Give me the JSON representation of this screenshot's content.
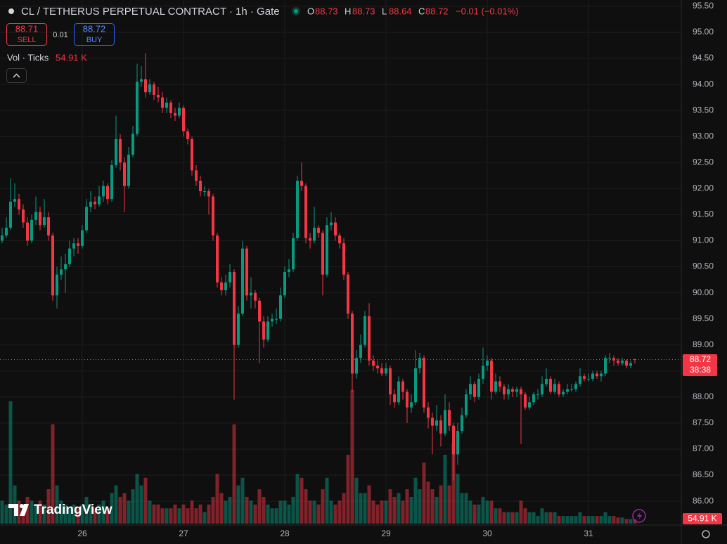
{
  "header": {
    "title": "CL / TETHERUS PERPETUAL CONTRACT · 1h · Gate",
    "o_label": "O",
    "o": "88.73",
    "h_label": "H",
    "h": "88.73",
    "l_label": "L",
    "l": "88.64",
    "c_label": "C",
    "c": "88.72",
    "change": "−0.01 (−0.01%)",
    "sell_price": "88.71",
    "sell": "SELL",
    "spread": "0.01",
    "buy_price": "88.72",
    "buy": "BUY",
    "vol_title": "Vol · Ticks",
    "vol_value": "54.91 K",
    "logo": "TradingView",
    "price_tag": "88.72",
    "countdown": "38:38",
    "vol_tag": "54.91 K"
  },
  "chart_data": {
    "type": "candlestick",
    "up_color": "#089981",
    "down_color": "#f23645",
    "grid": true,
    "categories": [
      null,
      null,
      null,
      null,
      null,
      null,
      null,
      null,
      null,
      null,
      null,
      null,
      null,
      null,
      null,
      null,
      null,
      null,
      null,
      "26",
      null,
      null,
      null,
      null,
      null,
      null,
      null,
      null,
      null,
      null,
      null,
      null,
      null,
      null,
      null,
      null,
      null,
      null,
      null,
      null,
      null,
      null,
      null,
      "27",
      null,
      null,
      null,
      null,
      null,
      null,
      null,
      null,
      null,
      null,
      null,
      null,
      null,
      null,
      null,
      null,
      null,
      null,
      null,
      null,
      null,
      null,
      null,
      "28",
      null,
      null,
      null,
      null,
      null,
      null,
      null,
      null,
      null,
      null,
      null,
      null,
      null,
      null,
      null,
      null,
      null,
      null,
      null,
      null,
      null,
      null,
      null,
      "29",
      null,
      null,
      null,
      null,
      null,
      null,
      null,
      null,
      null,
      null,
      null,
      null,
      null,
      null,
      null,
      null,
      null,
      null,
      null,
      null,
      null,
      null,
      null,
      "30",
      null,
      null,
      null,
      null,
      null,
      null,
      null,
      null,
      null,
      null,
      null,
      null,
      null,
      null,
      null,
      null,
      null,
      null,
      null,
      null,
      null,
      null,
      null,
      "31",
      null,
      null,
      null,
      null,
      null,
      null,
      null,
      null,
      null,
      null,
      null
    ],
    "open": [
      91.0,
      91.1,
      91.25,
      91.75,
      91.8,
      91.6,
      91.35,
      91.0,
      91.4,
      91.55,
      91.3,
      91.45,
      91.1,
      89.95,
      90.35,
      90.45,
      90.55,
      90.85,
      90.95,
      90.9,
      91.2,
      91.65,
      91.75,
      91.7,
      91.85,
      92.05,
      91.8,
      92.45,
      92.95,
      92.5,
      92.05,
      92.65,
      93.05,
      94.05,
      94.1,
      93.85,
      94.0,
      93.8,
      93.75,
      93.55,
      93.65,
      93.45,
      93.4,
      93.55,
      93.1,
      92.95,
      92.35,
      92.15,
      91.95,
      91.95,
      91.85,
      91.1,
      90.2,
      90.05,
      90.2,
      90.4,
      89.0,
      89.6,
      90.85,
      89.95,
      90.0,
      89.85,
      89.45,
      89.1,
      89.45,
      89.5,
      89.5,
      89.95,
      90.4,
      90.45,
      91.05,
      92.15,
      92.05,
      91.05,
      91.0,
      91.25,
      91.15,
      90.35,
      91.3,
      91.35,
      91.1,
      90.95,
      90.35,
      89.6,
      88.45,
      88.75,
      89.0,
      89.55,
      88.7,
      88.6,
      88.55,
      88.45,
      88.55,
      88.05,
      87.9,
      88.3,
      88.1,
      87.8,
      87.9,
      88.55,
      88.75,
      87.8,
      87.6,
      87.45,
      87.55,
      87.3,
      87.75,
      87.45,
      86.9,
      87.35,
      87.65,
      88.05,
      88.25,
      88.0,
      88.35,
      88.6,
      88.7,
      88.1,
      88.3,
      88.2,
      88.05,
      88.15,
      88.1,
      88.15,
      88.05,
      87.8,
      87.9,
      88.05,
      88.05,
      88.25,
      88.35,
      88.1,
      88.25,
      88.05,
      88.1,
      88.15,
      88.15,
      88.25,
      88.4,
      88.35,
      88.35,
      88.45,
      88.4,
      88.45,
      88.75,
      88.75,
      88.7,
      88.65,
      88.7,
      88.6,
      88.73
    ],
    "high": [
      91.25,
      91.45,
      92.2,
      92.1,
      91.9,
      91.7,
      91.45,
      91.5,
      91.85,
      91.65,
      91.8,
      91.55,
      91.15,
      90.5,
      90.7,
      90.75,
      91.0,
      91.05,
      91.05,
      91.3,
      91.8,
      91.95,
      91.85,
      92.05,
      92.15,
      92.1,
      92.55,
      93.4,
      93.05,
      92.6,
      92.8,
      93.2,
      94.4,
      94.35,
      94.6,
      94.1,
      94.05,
      93.95,
      93.85,
      93.75,
      93.7,
      93.55,
      93.65,
      93.6,
      93.15,
      93.0,
      92.45,
      92.25,
      92.05,
      92.0,
      91.9,
      91.15,
      90.3,
      90.35,
      90.55,
      90.45,
      89.75,
      91.0,
      90.9,
      90.3,
      90.05,
      89.9,
      89.55,
      89.55,
      89.6,
      89.7,
      90.1,
      90.5,
      90.65,
      91.15,
      92.25,
      92.5,
      92.1,
      91.15,
      91.65,
      91.3,
      91.2,
      91.45,
      91.55,
      91.45,
      91.15,
      91.05,
      90.4,
      89.65,
      88.9,
      89.2,
      89.65,
      89.8,
      88.8,
      88.7,
      88.65,
      88.65,
      88.6,
      88.15,
      88.4,
      88.35,
      88.15,
      88.05,
      88.9,
      88.85,
      88.8,
      87.9,
      87.7,
      87.85,
      87.65,
      88.05,
      87.9,
      87.5,
      87.5,
      87.8,
      88.15,
      88.4,
      88.3,
      88.45,
      88.95,
      88.8,
      88.75,
      88.45,
      88.4,
      88.25,
      88.25,
      88.2,
      88.2,
      88.2,
      88.1,
      88.0,
      88.1,
      88.15,
      88.4,
      88.55,
      88.4,
      88.35,
      88.3,
      88.15,
      88.25,
      88.25,
      88.3,
      88.55,
      88.45,
      88.45,
      88.5,
      88.5,
      88.5,
      88.8,
      88.85,
      88.8,
      88.75,
      88.75,
      88.72,
      88.7,
      88.73
    ],
    "low": [
      90.95,
      91.05,
      91.2,
      91.65,
      91.5,
      91.25,
      90.9,
      90.95,
      91.3,
      91.2,
      91.25,
      91.0,
      89.85,
      89.7,
      90.25,
      90.0,
      90.5,
      90.7,
      90.75,
      90.85,
      91.15,
      91.55,
      91.6,
      91.65,
      91.75,
      91.7,
      91.75,
      92.4,
      92.35,
      91.55,
      92.0,
      92.6,
      93.0,
      93.95,
      93.75,
      93.8,
      93.7,
      93.65,
      93.45,
      93.45,
      93.35,
      93.3,
      93.35,
      93.0,
      92.85,
      92.25,
      92.05,
      91.85,
      91.85,
      91.5,
      91.0,
      90.1,
      89.95,
      89.95,
      90.1,
      87.95,
      88.95,
      89.55,
      89.85,
      89.7,
      89.7,
      88.65,
      88.95,
      89.05,
      89.35,
      89.4,
      89.45,
      89.9,
      90.3,
      90.4,
      91.0,
      91.95,
      90.95,
      90.85,
      90.95,
      91.05,
      89.95,
      90.3,
      91.2,
      91.0,
      90.85,
      90.25,
      89.5,
      88.1,
      88.35,
      88.65,
      88.95,
      88.6,
      88.5,
      88.45,
      88.4,
      88.4,
      87.85,
      87.8,
      87.85,
      87.95,
      87.5,
      87.7,
      87.85,
      88.45,
      87.7,
      87.4,
      86.9,
      87.35,
      87.05,
      87.25,
      87.35,
      86.4,
      86.7,
      87.3,
      87.6,
      87.95,
      87.9,
      87.95,
      88.25,
      88.5,
      87.95,
      88.05,
      88.1,
      87.95,
      87.95,
      88.0,
      88.0,
      87.1,
      87.75,
      87.75,
      87.85,
      87.95,
      88.0,
      88.2,
      88.05,
      88.05,
      88.0,
      88.0,
      88.05,
      88.1,
      88.1,
      88.2,
      88.3,
      88.3,
      88.3,
      88.35,
      88.3,
      88.4,
      88.65,
      88.6,
      88.6,
      88.6,
      88.55,
      88.55,
      88.64
    ],
    "close": [
      91.1,
      91.25,
      91.75,
      91.8,
      91.6,
      91.35,
      91.0,
      91.4,
      91.55,
      91.3,
      91.45,
      91.1,
      89.95,
      90.35,
      90.45,
      90.55,
      90.85,
      90.95,
      90.9,
      91.2,
      91.65,
      91.75,
      91.7,
      91.85,
      92.05,
      91.8,
      92.45,
      92.95,
      92.5,
      92.05,
      92.65,
      93.05,
      94.05,
      94.1,
      93.85,
      94.0,
      93.8,
      93.75,
      93.55,
      93.65,
      93.45,
      93.4,
      93.55,
      93.1,
      92.95,
      92.35,
      92.15,
      91.95,
      91.95,
      91.85,
      91.1,
      90.2,
      90.05,
      90.2,
      90.4,
      89.0,
      89.6,
      90.85,
      89.95,
      90.0,
      89.85,
      89.45,
      89.1,
      89.45,
      89.5,
      89.5,
      89.95,
      90.4,
      90.45,
      91.05,
      92.15,
      92.05,
      91.05,
      91.0,
      91.25,
      91.15,
      90.35,
      91.3,
      91.35,
      91.1,
      90.95,
      90.35,
      89.6,
      88.45,
      88.75,
      89.0,
      89.55,
      88.7,
      88.6,
      88.55,
      88.45,
      88.55,
      88.05,
      87.9,
      88.3,
      88.1,
      87.8,
      87.9,
      88.55,
      88.75,
      87.8,
      87.6,
      87.45,
      87.55,
      87.3,
      87.75,
      87.45,
      86.9,
      87.35,
      87.65,
      88.05,
      88.25,
      88.0,
      88.35,
      88.6,
      88.7,
      88.1,
      88.3,
      88.2,
      88.05,
      88.15,
      88.1,
      88.15,
      88.05,
      87.8,
      87.9,
      88.05,
      88.05,
      88.25,
      88.35,
      88.1,
      88.25,
      88.05,
      88.1,
      88.15,
      88.15,
      88.25,
      88.4,
      88.35,
      88.35,
      88.45,
      88.4,
      88.45,
      88.75,
      88.75,
      88.7,
      88.65,
      88.7,
      88.6,
      88.65,
      88.72
    ],
    "volume": [
      300,
      250,
      1600,
      500,
      300,
      250,
      350,
      300,
      250,
      300,
      250,
      450,
      1300,
      500,
      300,
      250,
      200,
      250,
      200,
      250,
      350,
      250,
      200,
      250,
      300,
      200,
      400,
      500,
      350,
      400,
      300,
      450,
      650,
      500,
      600,
      300,
      250,
      250,
      200,
      200,
      200,
      250,
      200,
      250,
      200,
      300,
      200,
      250,
      150,
      250,
      350,
      650,
      400,
      300,
      350,
      1300,
      500,
      600,
      350,
      300,
      250,
      450,
      350,
      250,
      200,
      200,
      300,
      300,
      250,
      350,
      650,
      600,
      450,
      300,
      300,
      250,
      450,
      600,
      300,
      250,
      300,
      400,
      900,
      1750,
      600,
      400,
      400,
      500,
      300,
      250,
      300,
      300,
      450,
      350,
      400,
      300,
      450,
      350,
      600,
      450,
      800,
      550,
      450,
      350,
      500,
      900,
      500,
      1050,
      650,
      400,
      400,
      300,
      250,
      250,
      350,
      300,
      300,
      200,
      200,
      150,
      150,
      150,
      150,
      300,
      200,
      150,
      150,
      100,
      200,
      150,
      150,
      150,
      100,
      100,
      100,
      100,
      100,
      150,
      100,
      100,
      100,
      100,
      100,
      150,
      100,
      100,
      80,
      80,
      60,
      60,
      54.91
    ],
    "ylim": [
      85.57,
      95.62
    ],
    "vlim": [
      0,
      4000
    ],
    "last_price": 88.72,
    "yticks": [
      {
        "value": 86,
        "label": "86.00"
      },
      {
        "value": 86.5,
        "label": "86.50"
      },
      {
        "value": 87,
        "label": "87.00"
      },
      {
        "value": 87.5,
        "label": "87.50"
      },
      {
        "value": 88,
        "label": "88.00"
      },
      {
        "value": 88.5,
        "label": "88.50"
      },
      {
        "value": 89,
        "label": "89.00"
      },
      {
        "value": 89.5,
        "label": "89.50"
      },
      {
        "value": 90,
        "label": "90.00"
      },
      {
        "value": 90.5,
        "label": "90.50"
      },
      {
        "value": 91,
        "label": "91.00"
      },
      {
        "value": 91.5,
        "label": "91.50"
      },
      {
        "value": 92,
        "label": "92.00"
      },
      {
        "value": 92.5,
        "label": "92.50"
      },
      {
        "value": 93,
        "label": "93.00"
      },
      {
        "value": 93.5,
        "label": "93.50"
      },
      {
        "value": 94,
        "label": "94.00"
      },
      {
        "value": 94.5,
        "label": "94.50"
      },
      {
        "value": 95,
        "label": "95.00"
      },
      {
        "value": 95.5,
        "label": "95.50"
      }
    ]
  }
}
